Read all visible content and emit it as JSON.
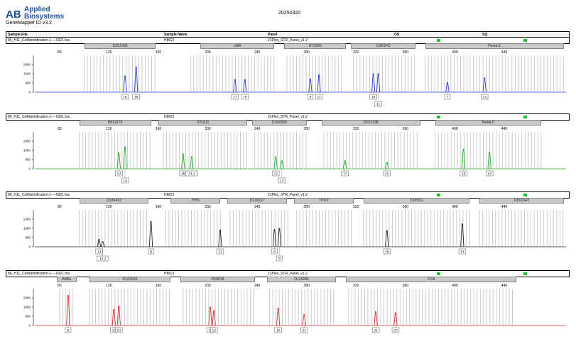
{
  "app": {
    "logo_line1": "Applied",
    "logo_line2": "Biosystems",
    "software": "GeneMapper ID v3.2",
    "date": "20250320"
  },
  "header": {
    "sample_file": "Sample File",
    "sample_name": "Sample Name",
    "panel": "Panel",
    "os": "OS",
    "sq": "SQ"
  },
  "colors": {
    "blue": "#2a3cd2",
    "green": "#23a623",
    "black": "#222222",
    "red": "#e0282b",
    "bin": "#c7c7c7",
    "quality": "#19c12b"
  },
  "chart_data": [
    {
      "type": "line",
      "dye": "blue",
      "sample_file": "86_H11_CellIdentification-1----0321.fsa",
      "sample_name": "HMC3",
      "panel": "21Plex_STR_Panel_v1.2",
      "xlim": [
        60,
        490
      ],
      "ylim": [
        0,
        3200
      ],
      "xticks": [
        80,
        120,
        160,
        200,
        240,
        280,
        320,
        360,
        400,
        440
      ],
      "yticks": [
        0,
        800,
        1600,
        2400
      ],
      "markers": [
        {
          "name": "D3S1358",
          "range": [
            100,
            158
          ]
        },
        {
          "name": "vWA",
          "range": [
            194,
            254
          ]
        },
        {
          "name": "D7S820",
          "range": [
            262,
            312
          ]
        },
        {
          "name": "CSF1PO",
          "range": [
            316,
            368
          ]
        },
        {
          "name": "Penta E",
          "range": [
            376,
            488
          ]
        }
      ],
      "bins": [
        [
          100,
          158
        ],
        [
          186,
          256
        ],
        [
          264,
          310
        ],
        [
          318,
          368
        ],
        [
          376,
          488
        ]
      ],
      "peaks": [
        {
          "x": 133,
          "height": 1400,
          "label": "16"
        },
        {
          "x": 142,
          "height": 2200,
          "label": "18"
        },
        {
          "x": 222,
          "height": 1100,
          "label": "17"
        },
        {
          "x": 230,
          "height": 1100,
          "label": "19"
        },
        {
          "x": 283,
          "height": 1150,
          "label": "9"
        },
        {
          "x": 290,
          "height": 1500,
          "label": "11"
        },
        {
          "x": 334,
          "height": 1600,
          "label": "10"
        },
        {
          "x": 338,
          "height": 1600,
          "label": "11"
        },
        {
          "x": 394,
          "height": 850,
          "label": "7"
        },
        {
          "x": 424,
          "height": 1250,
          "label": "13"
        }
      ]
    },
    {
      "type": "line",
      "dye": "green",
      "sample_file": "86_H11_CellIdentification-1----0321.fsa",
      "sample_name": "HMC3",
      "panel": "21Plex_STR_Panel_v1.2",
      "xlim": [
        60,
        490
      ],
      "ylim": [
        0,
        3200
      ],
      "xticks": [
        80,
        120,
        160,
        200,
        240,
        280,
        320,
        360,
        400,
        440
      ],
      "yticks": [
        0,
        800,
        1600,
        2400
      ],
      "markers": [
        {
          "name": "D6S1170",
          "range": [
            96,
            154
          ]
        },
        {
          "name": "D21S11",
          "range": [
            160,
            232
          ]
        },
        {
          "name": "D16S539",
          "range": [
            236,
            280
          ]
        },
        {
          "name": "D2S1338",
          "range": [
            292,
            372
          ]
        },
        {
          "name": "Penta D",
          "range": [
            384,
            470
          ]
        }
      ],
      "bins": [
        [
          96,
          154
        ],
        [
          164,
          234
        ],
        [
          238,
          282
        ],
        [
          294,
          372
        ],
        [
          384,
          470
        ]
      ],
      "peaks": [
        {
          "x": 128,
          "height": 1400,
          "label": "13"
        },
        {
          "x": 133,
          "height": 1900,
          "label": "14"
        },
        {
          "x": 180,
          "height": 1300,
          "label": "30"
        },
        {
          "x": 187,
          "height": 1050,
          "label": "31.2"
        },
        {
          "x": 255,
          "height": 1050,
          "label": "12"
        },
        {
          "x": 260,
          "height": 700,
          "label": "13"
        },
        {
          "x": 311,
          "height": 700,
          "label": "17"
        },
        {
          "x": 345,
          "height": 550,
          "label": "25"
        },
        {
          "x": 407,
          "height": 1700,
          "label": "10"
        },
        {
          "x": 428,
          "height": 1450,
          "label": "14"
        }
      ]
    },
    {
      "type": "line",
      "dye": "black",
      "sample_file": "86_H11_CellIdentification-1----0321.fsa",
      "sample_name": "HMC3",
      "panel": "21Plex_STR_Panel_v1.2",
      "xlim": [
        60,
        490
      ],
      "ylim": [
        0,
        3200
      ],
      "xticks": [
        80,
        120,
        160,
        200,
        240,
        280,
        320,
        360,
        400,
        440
      ],
      "yticks": [
        0,
        800,
        1600,
        2400
      ],
      "markers": [
        {
          "name": "D19S433",
          "range": [
            96,
            152
          ]
        },
        {
          "name": "TH01",
          "range": [
            170,
            210
          ]
        },
        {
          "name": "D13S317",
          "range": [
            216,
            264
          ]
        },
        {
          "name": "TPOX",
          "range": [
            270,
            318
          ]
        },
        {
          "name": "D18S51",
          "range": [
            326,
            412
          ]
        },
        {
          "name": "D8S1043",
          "range": [
            420,
            488
          ]
        }
      ],
      "bins": [
        [
          96,
          152
        ],
        [
          166,
          212
        ],
        [
          218,
          266
        ],
        [
          272,
          318
        ],
        [
          326,
          412
        ],
        [
          420,
          488
        ]
      ],
      "peaks": [
        {
          "x": 112,
          "height": 650,
          "label": "13"
        },
        {
          "x": 115,
          "height": 450,
          "label": "13.2"
        },
        {
          "x": 154,
          "height": 2200,
          "label": "6"
        },
        {
          "x": 210,
          "height": 1450,
          "label": "11"
        },
        {
          "x": 254,
          "height": 1500,
          "label": "8"
        },
        {
          "x": 258,
          "height": 1600,
          "label": "9"
        },
        {
          "x": 345,
          "height": 1400,
          "label": "18"
        },
        {
          "x": 406,
          "height": 2000,
          "label": "11"
        }
      ]
    },
    {
      "type": "line",
      "dye": "red",
      "sample_file": "86_H11_CellIdentification-1----0321.fsa",
      "sample_name": "HMC3",
      "panel": "21Plex_STR_Panel_v1.2",
      "xlim": [
        60,
        490
      ],
      "ylim": [
        0,
        3200
      ],
      "xticks": [
        80,
        120,
        160,
        200,
        240,
        280,
        320,
        360,
        400,
        440
      ],
      "yticks": [
        0,
        800,
        1600,
        2400
      ],
      "markers": [
        {
          "name": "AMEL",
          "range": [
            78,
            94
          ]
        },
        {
          "name": "D1S1656",
          "range": [
            104,
            170
          ]
        },
        {
          "name": "D5S818",
          "range": [
            178,
            238
          ]
        },
        {
          "name": "D12S391",
          "range": [
            248,
            304
          ]
        },
        {
          "name": "FGA",
          "range": [
            312,
            450
          ]
        }
      ],
      "bins": [
        [
          80,
          92
        ],
        [
          104,
          170
        ],
        [
          180,
          238
        ],
        [
          250,
          304
        ],
        [
          314,
          448
        ]
      ],
      "peaks": [
        {
          "x": 87,
          "height": 2600,
          "label": "X"
        },
        {
          "x": 124,
          "height": 1400,
          "label": "12"
        },
        {
          "x": 128,
          "height": 1700,
          "label": "13"
        },
        {
          "x": 202,
          "height": 1600,
          "label": "11"
        },
        {
          "x": 205,
          "height": 1300,
          "label": "12"
        },
        {
          "x": 257,
          "height": 1500,
          "label": "16"
        },
        {
          "x": 278,
          "height": 950,
          "label": "21"
        },
        {
          "x": 336,
          "height": 1200,
          "label": "21"
        },
        {
          "x": 352,
          "height": 1100,
          "label": "25"
        }
      ]
    }
  ]
}
